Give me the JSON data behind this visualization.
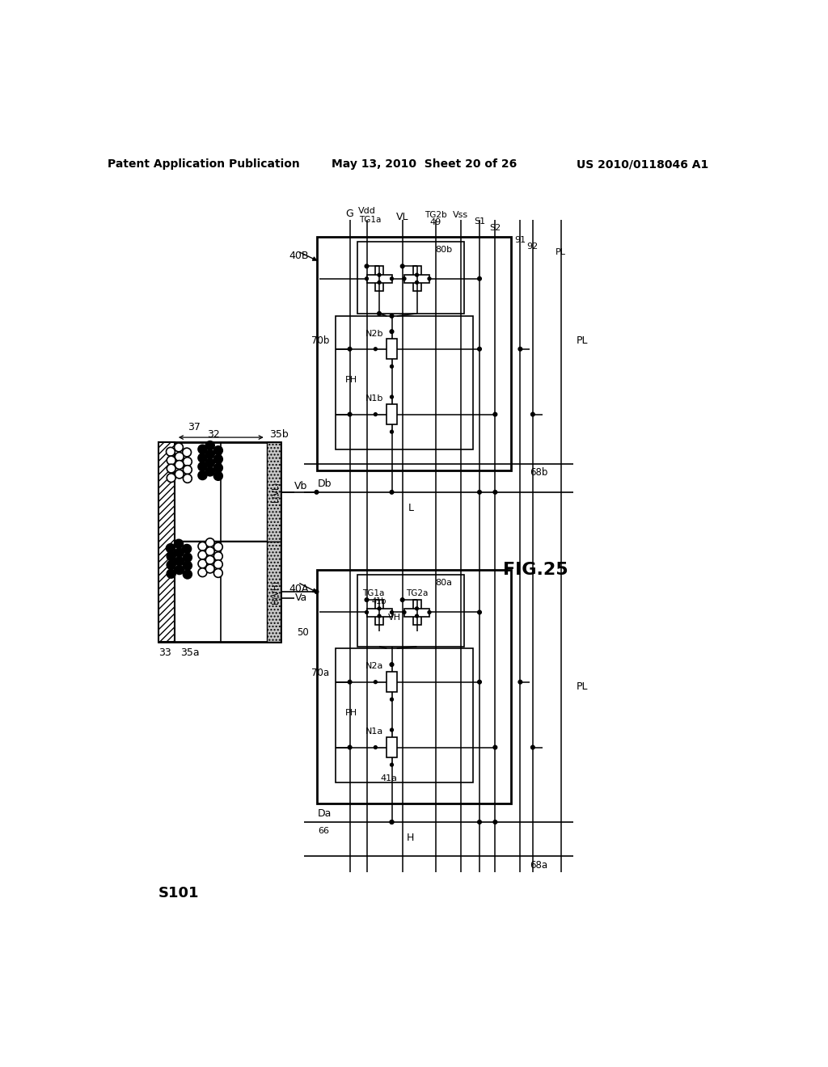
{
  "header_left": "Patent Application Publication",
  "header_center": "May 13, 2010  Sheet 20 of 26",
  "header_right": "US 2010/0118046 A1",
  "fig_label": "FIG.25",
  "ref_label": "S101",
  "bg": "#ffffff"
}
